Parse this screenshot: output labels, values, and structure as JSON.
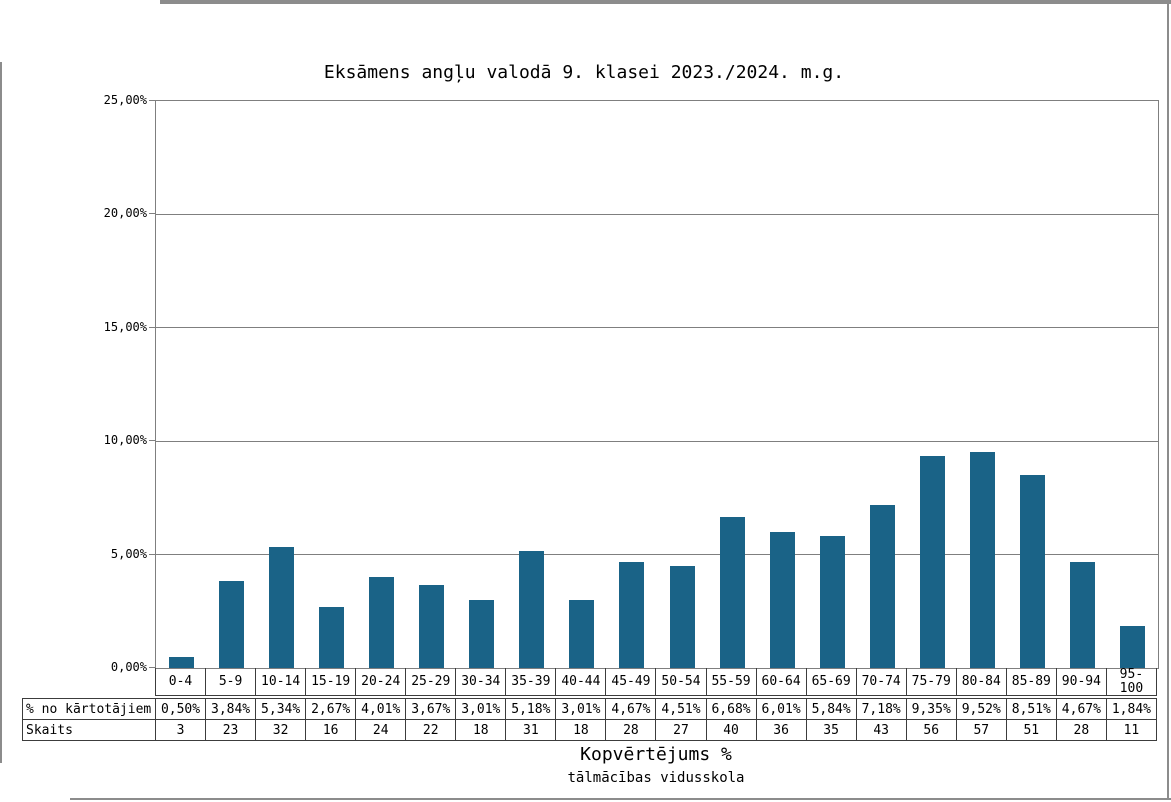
{
  "chart_data": {
    "type": "bar",
    "title": "Eksāmens angļu valodā 9. klasei 2023./2024. m.g.",
    "xlabel": "Kopvērtējums %",
    "x_sublabel": "tālmācības vidusskola",
    "categories": [
      "0-4",
      "5-9",
      "10-14",
      "15-19",
      "20-24",
      "25-29",
      "30-34",
      "35-39",
      "40-44",
      "45-49",
      "50-54",
      "55-59",
      "60-64",
      "65-69",
      "70-74",
      "75-79",
      "80-84",
      "85-89",
      "90-94",
      "95-100"
    ],
    "series": [
      {
        "name": "% no kārtotājiem",
        "values": [
          0.5,
          3.84,
          5.34,
          2.67,
          4.01,
          3.67,
          3.01,
          5.18,
          3.01,
          4.67,
          4.51,
          6.68,
          6.01,
          5.84,
          7.18,
          9.35,
          9.52,
          8.51,
          4.67,
          1.84
        ],
        "display": [
          "0,50%",
          "3,84%",
          "5,34%",
          "2,67%",
          "4,01%",
          "3,67%",
          "3,01%",
          "5,18%",
          "3,01%",
          "4,67%",
          "4,51%",
          "6,68%",
          "6,01%",
          "5,84%",
          "7,18%",
          "9,35%",
          "9,52%",
          "8,51%",
          "4,67%",
          "1,84%"
        ]
      },
      {
        "name": "Skaits",
        "values": [
          3,
          23,
          32,
          16,
          24,
          22,
          18,
          31,
          18,
          28,
          27,
          40,
          36,
          35,
          43,
          56,
          57,
          51,
          28,
          11
        ],
        "display": [
          "3",
          "23",
          "32",
          "16",
          "24",
          "22",
          "18",
          "31",
          "18",
          "28",
          "27",
          "40",
          "36",
          "35",
          "43",
          "56",
          "57",
          "51",
          "28",
          "11"
        ]
      }
    ],
    "plotted_series": 0,
    "ylim": [
      0,
      25
    ],
    "yticks": [
      {
        "value": 0,
        "label": "0,00%"
      },
      {
        "value": 5,
        "label": "5,00%"
      },
      {
        "value": 10,
        "label": "10,00%"
      },
      {
        "value": 15,
        "label": "15,00%"
      },
      {
        "value": 20,
        "label": "20,00%"
      },
      {
        "value": 25,
        "label": "25,00%"
      }
    ],
    "grid": true,
    "legend": "none",
    "bar_color": "#1A6387",
    "gridline_color": "#7f7f7f",
    "table_border_color": "#3c3c3c"
  }
}
